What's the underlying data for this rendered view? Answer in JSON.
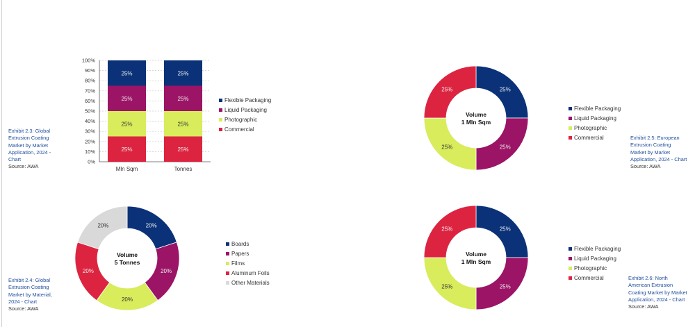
{
  "colors": {
    "flexible": "#0b3278",
    "liquid": "#9b1466",
    "photo": "#d8ec5c",
    "commercial": "#dc2440",
    "other": "#d9d9d9",
    "caption": "#1f4e9c"
  },
  "chart_data": [
    {
      "id": "exhibit_2_3",
      "type": "bar",
      "stacked": true,
      "categories": [
        "Mln Sqm",
        "Tonnes"
      ],
      "series": [
        {
          "name": "Commercial",
          "values": [
            25,
            25
          ],
          "labels": [
            "25%",
            "25%"
          ],
          "color": "#dc2440"
        },
        {
          "name": "Photographic",
          "values": [
            25,
            25
          ],
          "labels": [
            "25%",
            "25%"
          ],
          "color": "#d8ec5c"
        },
        {
          "name": "Liquid Packaging",
          "values": [
            25,
            25
          ],
          "labels": [
            "25%",
            "25%"
          ],
          "color": "#9b1466"
        },
        {
          "name": "Flexible Packaging",
          "values": [
            25,
            25
          ],
          "labels": [
            "25%",
            "25%"
          ],
          "color": "#0b3278"
        }
      ],
      "yticks": [
        "0%",
        "10%",
        "20%",
        "30%",
        "40%",
        "50%",
        "60%",
        "70%",
        "80%",
        "90%",
        "100%"
      ],
      "ylim": [
        0,
        100
      ],
      "grid": true,
      "legend": "right",
      "legend_entries": [
        "Flexible Packaging",
        "Liquid Packaging",
        "Photographic",
        "Commercial"
      ],
      "caption": "Exhibit 2.3: Global Extrusion Coating Market by Market Application, 2024 - Chart",
      "source": "Source: AWA"
    },
    {
      "id": "exhibit_2_5",
      "type": "pie",
      "donut": true,
      "center_title": "Volume",
      "center_value": "1 Mln Sqm",
      "slices": [
        {
          "name": "Flexible Packaging",
          "value": 25,
          "label": "25%",
          "color": "#0b3278"
        },
        {
          "name": "Liquid Packaging",
          "value": 25,
          "label": "25%",
          "color": "#9b1466"
        },
        {
          "name": "Photographic",
          "value": 25,
          "label": "25%",
          "color": "#d8ec5c"
        },
        {
          "name": "Commercial",
          "value": 25,
          "label": "25%",
          "color": "#dc2440"
        }
      ],
      "legend": "right",
      "caption": "Exhibit 2.5: European Extrusion Coating Market by Market Application, 2024 - Chart",
      "source": "Source: AWA"
    },
    {
      "id": "exhibit_2_4",
      "type": "pie",
      "donut": true,
      "center_title": "Volume",
      "center_value": "5 Tonnes",
      "slices": [
        {
          "name": "Boards",
          "value": 20,
          "label": "20%",
          "color": "#0b3278"
        },
        {
          "name": "Papers",
          "value": 20,
          "label": "20%",
          "color": "#9b1466"
        },
        {
          "name": "Films",
          "value": 20,
          "label": "20%",
          "color": "#d8ec5c"
        },
        {
          "name": "Aluminum Foils",
          "value": 20,
          "label": "20%",
          "color": "#dc2440"
        },
        {
          "name": "Other Materials",
          "value": 20,
          "label": "20%",
          "color": "#d9d9d9"
        }
      ],
      "legend": "right",
      "caption": "Exhibit 2.4: Global Extrusion Coating Market by Material, 2024 - Chart",
      "source": "Source: AWA"
    },
    {
      "id": "exhibit_2_6",
      "type": "pie",
      "donut": true,
      "center_title": "Volume",
      "center_value": "1 Mln Sqm",
      "slices": [
        {
          "name": "Flexible Packaging",
          "value": 25,
          "label": "25%",
          "color": "#0b3278"
        },
        {
          "name": "Liquid Packaging",
          "value": 25,
          "label": "25%",
          "color": "#9b1466"
        },
        {
          "name": "Photographic",
          "value": 25,
          "label": "25%",
          "color": "#d8ec5c"
        },
        {
          "name": "Commercial",
          "value": 25,
          "label": "25%",
          "color": "#dc2440"
        }
      ],
      "legend": "right",
      "caption": "Exhibit 2.6: North American Extrusion Coating Market by Market Application, 2024 - Chart",
      "source": "Source: AWA"
    }
  ]
}
